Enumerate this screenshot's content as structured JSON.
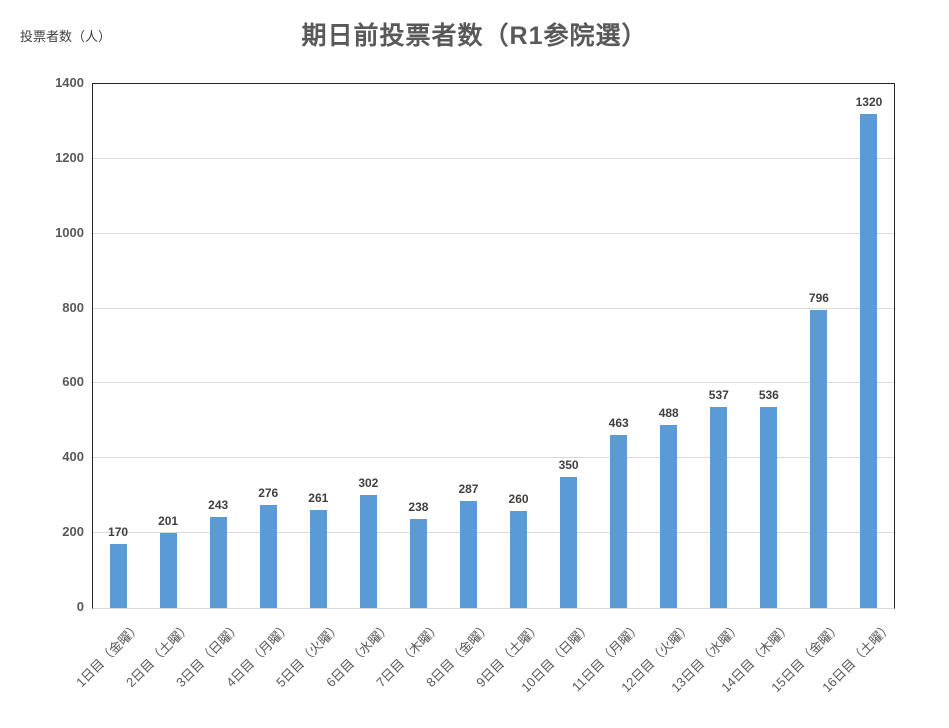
{
  "chart_data": {
    "type": "bar",
    "title": "期日前投票者数（R1参院選）",
    "ylabel": "投票者数（人）",
    "xlabel": "",
    "categories": [
      "1日目（金曜）",
      "2日目（土曜）",
      "3日目（日曜）",
      "4日目（月曜）",
      "5日目（火曜）",
      "6日目（水曜）",
      "7日目（木曜）",
      "8日目（金曜）",
      "9日目（土曜）",
      "10日目（日曜）",
      "11日目（月曜）",
      "12日目（火曜）",
      "13日目（水曜）",
      "14日目（木曜）",
      "15日目（金曜）",
      "16日目（土曜）"
    ],
    "values": [
      170,
      201,
      243,
      276,
      261,
      302,
      238,
      287,
      260,
      350,
      463,
      488,
      537,
      536,
      796,
      1320
    ],
    "ylim": [
      0,
      1400
    ],
    "ytick_interval": 200,
    "ytick_labels": [
      "0",
      "200",
      "400",
      "600",
      "800",
      "1000",
      "1200",
      "1400"
    ],
    "grid": true,
    "legend": "none",
    "data_labels": true,
    "colors": {
      "bar": "#5b9bd5",
      "gridline": "#d9d9d9",
      "plot_border": "#262626",
      "title_text": "#595959",
      "tick_text": "#595959",
      "data_label_text": "#404040"
    }
  }
}
